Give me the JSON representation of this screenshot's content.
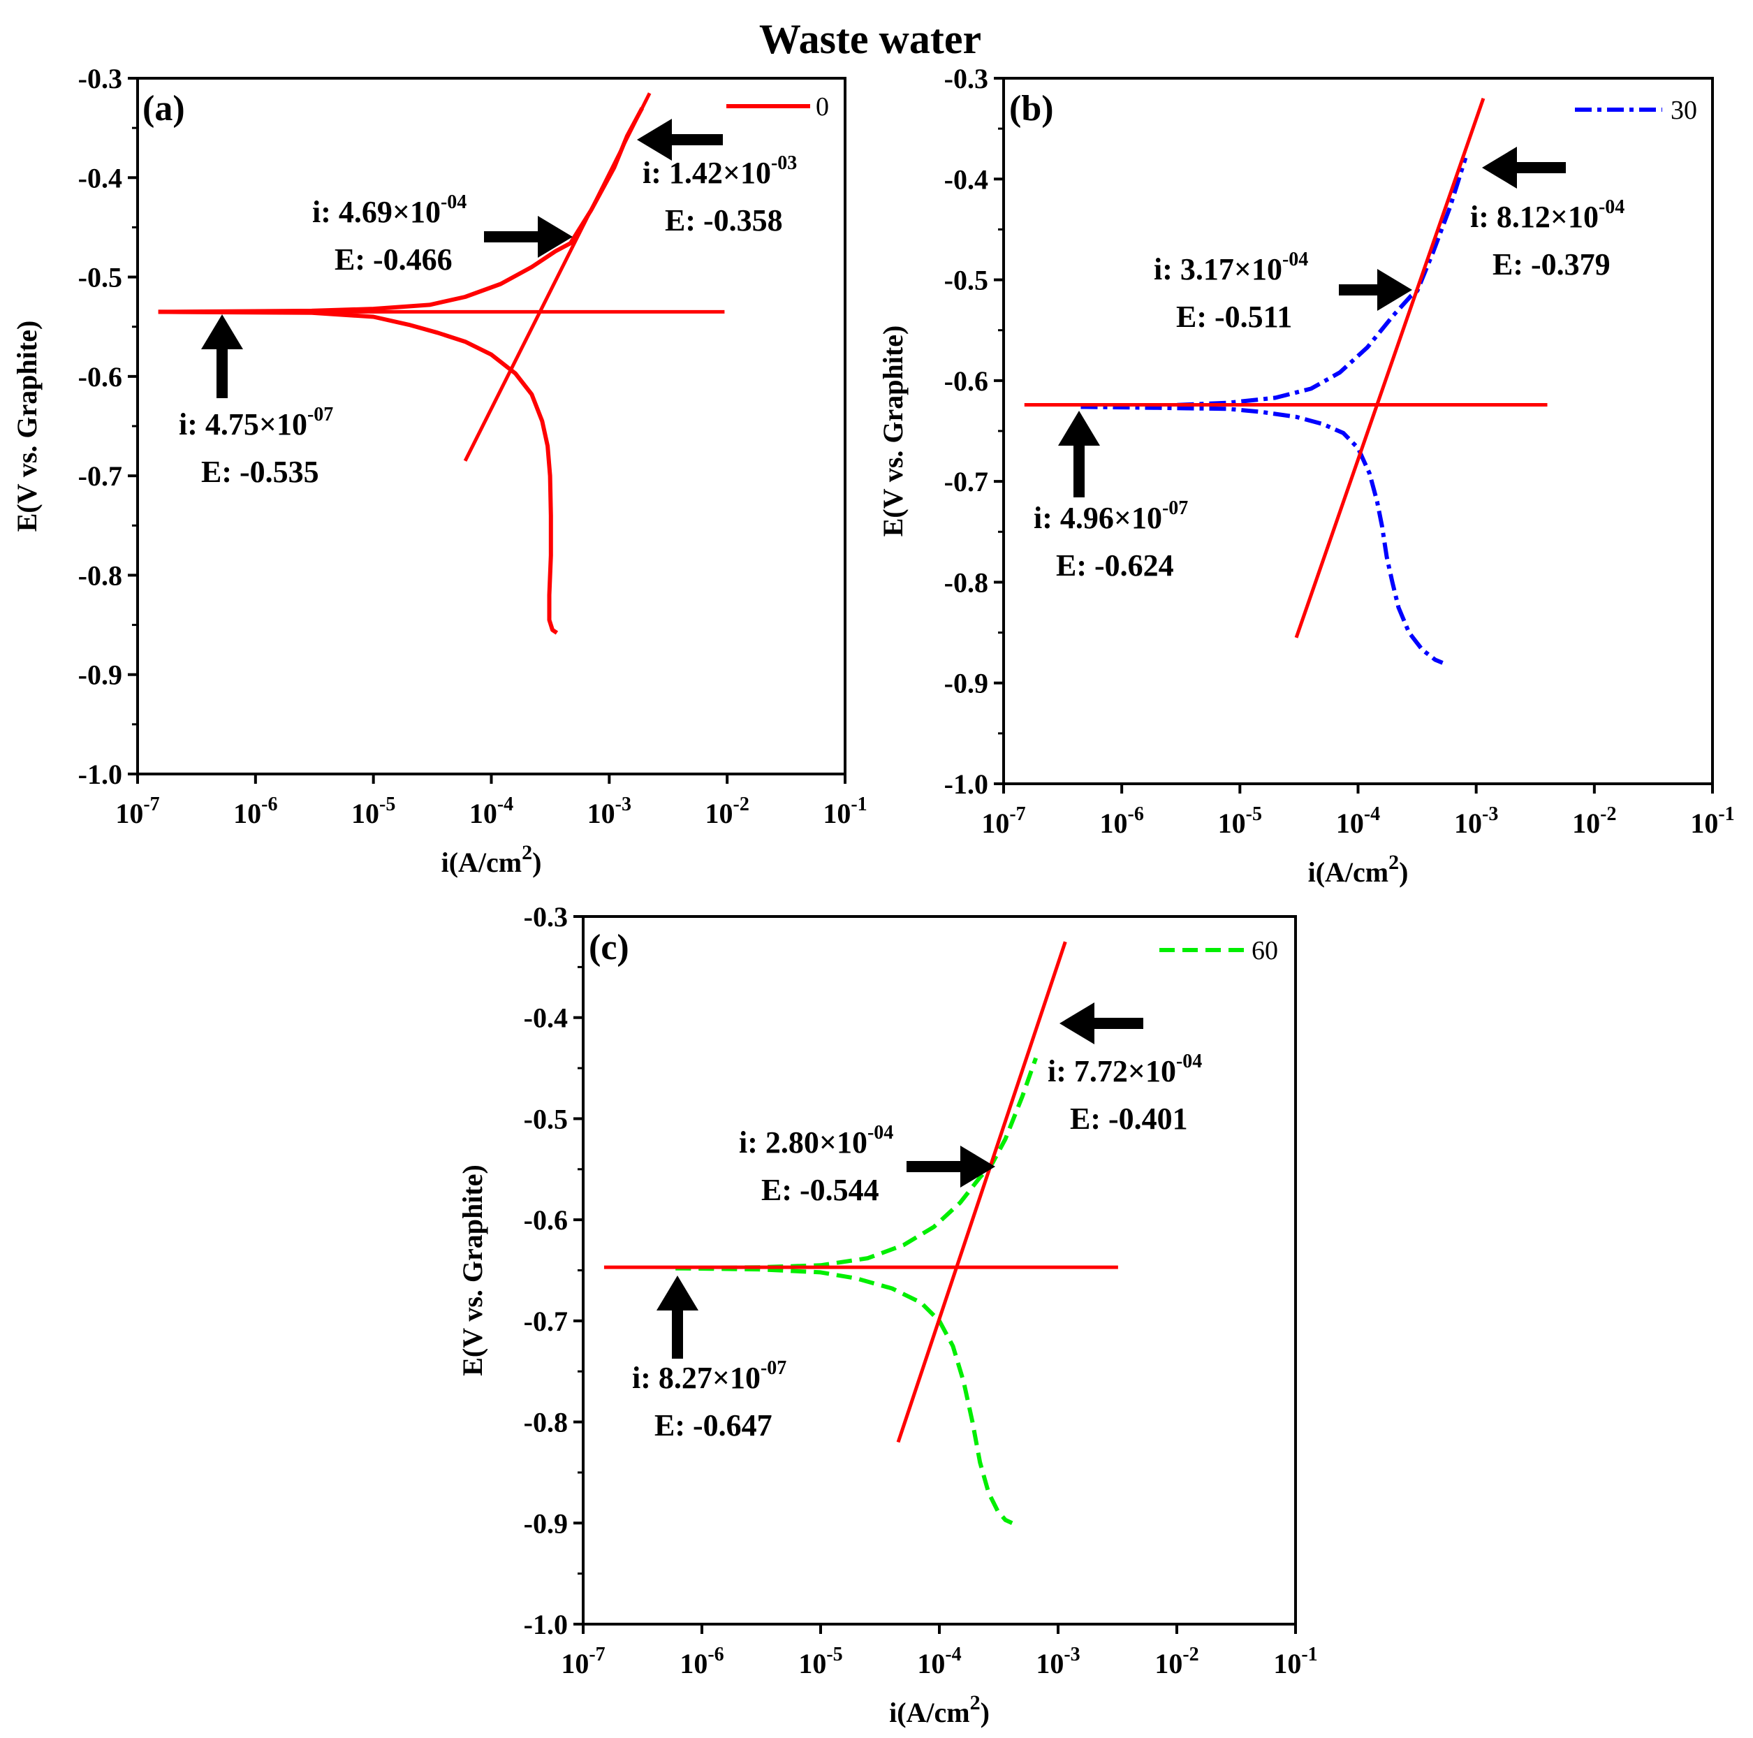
{
  "title": "Waste water",
  "chart_data": [
    {
      "type": "line",
      "panel": "(a)",
      "legend": "0",
      "color": "#ff0000",
      "dash": "solid",
      "xlabel": "i(A/cm",
      "xlabel_sup": "2",
      "xlabel_close": ")",
      "ylabel": "E(V vs. Graphite)",
      "xscale": "log",
      "xlim": [
        1e-07,
        0.1
      ],
      "ylim": [
        -1.0,
        -0.3
      ],
      "x_ticks": [
        {
          "base": "10",
          "exp": "-7"
        },
        {
          "base": "10",
          "exp": "-6"
        },
        {
          "base": "10",
          "exp": "-5"
        },
        {
          "base": "10",
          "exp": "-4"
        },
        {
          "base": "10",
          "exp": "-3"
        },
        {
          "base": "10",
          "exp": "-2"
        },
        {
          "base": "10",
          "exp": "-1"
        }
      ],
      "y_ticks": [
        "-1.0",
        "-0.9",
        "-0.8",
        "-0.7",
        "-0.6",
        "-0.5",
        "-0.4",
        "-0.3"
      ],
      "anodic": {
        "x": [
          1.5e-07,
          3e-06,
          1e-05,
          3e-05,
          6e-05,
          0.00012,
          0.00022,
          0.00035,
          0.000469,
          0.0007,
          0.0011,
          0.00142,
          0.0019
        ],
        "y": [
          -0.535,
          -0.534,
          -0.532,
          -0.528,
          -0.52,
          -0.507,
          -0.49,
          -0.474,
          -0.466,
          -0.433,
          -0.39,
          -0.358,
          -0.33
        ]
      },
      "cathodic": {
        "x": [
          1.5e-07,
          3e-06,
          1e-05,
          2e-05,
          3.5e-05,
          6e-05,
          0.0001,
          0.00016,
          0.00022,
          0.00027,
          0.0003,
          0.000315,
          0.00032,
          0.00032,
          0.00031,
          0.00031,
          0.00033,
          0.00036
        ],
        "y": [
          -0.535,
          -0.536,
          -0.54,
          -0.548,
          -0.556,
          -0.565,
          -0.578,
          -0.597,
          -0.618,
          -0.645,
          -0.67,
          -0.7,
          -0.74,
          -0.78,
          -0.82,
          -0.845,
          -0.855,
          -0.858
        ]
      },
      "tafel_lines": [
        {
          "x": [
            1.6e-07,
            0.0095
          ],
          "y": [
            -0.535,
            -0.535
          ]
        },
        {
          "x": [
            6e-05,
            0.0022
          ],
          "y": [
            -0.685,
            -0.315
          ]
        }
      ],
      "annotations": [
        {
          "line1": "i: 1.42×10",
          "exp": "-03",
          "line2": "E: -0.358",
          "arrow": "left"
        },
        {
          "line1": "i: 4.69×10",
          "exp": "-04",
          "line2": "E: -0.466",
          "arrow": "right"
        },
        {
          "line1": "i: 4.75×10",
          "exp": "-07",
          "line2": "E: -0.535",
          "arrow": "up"
        }
      ]
    },
    {
      "type": "line",
      "panel": "(b)",
      "legend": "30",
      "color": "#0000ff",
      "dash": "dashdot",
      "xlabel": "i(A/cm",
      "xlabel_sup": "2",
      "xlabel_close": ")",
      "ylabel": "E(V vs. Graphite)",
      "xscale": "log",
      "xlim": [
        1e-07,
        0.1
      ],
      "ylim": [
        -1.0,
        -0.3
      ],
      "x_ticks": [
        {
          "base": "10",
          "exp": "-7"
        },
        {
          "base": "10",
          "exp": "-6"
        },
        {
          "base": "10",
          "exp": "-5"
        },
        {
          "base": "10",
          "exp": "-4"
        },
        {
          "base": "10",
          "exp": "-3"
        },
        {
          "base": "10",
          "exp": "-2"
        },
        {
          "base": "10",
          "exp": "-1"
        }
      ],
      "y_ticks": [
        "-1.0",
        "-0.9",
        "-0.8",
        "-0.7",
        "-0.6",
        "-0.5",
        "-0.4",
        "-0.3"
      ],
      "anodic": {
        "x": [
          4.5e-07,
          2e-06,
          8e-06,
          2e-05,
          4e-05,
          7e-05,
          0.00012,
          0.0002,
          0.00028,
          0.000317,
          0.00043,
          0.0006,
          0.000812
        ],
        "y": [
          -0.626,
          -0.625,
          -0.622,
          -0.617,
          -0.608,
          -0.592,
          -0.567,
          -0.535,
          -0.516,
          -0.511,
          -0.473,
          -0.428,
          -0.379
        ]
      },
      "cathodic": {
        "x": [
          4.5e-07,
          2e-06,
          8e-06,
          1.5e-05,
          3e-05,
          5e-05,
          7.5e-05,
          0.0001,
          0.000125,
          0.000145,
          0.00016,
          0.000175,
          0.000195,
          0.00022,
          0.00027,
          0.00035,
          0.00045,
          0.00052
        ],
        "y": [
          -0.626,
          -0.627,
          -0.628,
          -0.631,
          -0.636,
          -0.643,
          -0.652,
          -0.667,
          -0.692,
          -0.72,
          -0.745,
          -0.775,
          -0.8,
          -0.825,
          -0.85,
          -0.867,
          -0.877,
          -0.88
        ]
      },
      "tafel_lines": [
        {
          "x": [
            1.5e-07,
            0.004
          ],
          "y": [
            -0.624,
            -0.624
          ]
        },
        {
          "x": [
            3e-05,
            0.00115
          ],
          "y": [
            -0.855,
            -0.32
          ]
        }
      ],
      "annotations": [
        {
          "line1": "i: 8.12×10",
          "exp": "-04",
          "line2": "E: -0.379",
          "arrow": "left"
        },
        {
          "line1": "i: 3.17×10",
          "exp": "-04",
          "line2": "E: -0.511",
          "arrow": "right"
        },
        {
          "line1": "i: 4.96×10",
          "exp": "-07",
          "line2": "E: -0.624",
          "arrow": "up"
        }
      ]
    },
    {
      "type": "line",
      "panel": "(c)",
      "legend": "60",
      "color": "#00ee00",
      "dash": "dashed",
      "xlabel": "i(A/cm",
      "xlabel_sup": "2",
      "xlabel_close": ")",
      "ylabel": "E(V vs. Graphite)",
      "xscale": "log",
      "xlim": [
        1e-07,
        0.1
      ],
      "ylim": [
        -1.0,
        -0.3
      ],
      "x_ticks": [
        {
          "base": "10",
          "exp": "-7"
        },
        {
          "base": "10",
          "exp": "-6"
        },
        {
          "base": "10",
          "exp": "-5"
        },
        {
          "base": "10",
          "exp": "-4"
        },
        {
          "base": "10",
          "exp": "-3"
        },
        {
          "base": "10",
          "exp": "-2"
        },
        {
          "base": "10",
          "exp": "-1"
        }
      ],
      "y_ticks": [
        "-1.0",
        "-0.9",
        "-0.8",
        "-0.7",
        "-0.6",
        "-0.5",
        "-0.4",
        "-0.3"
      ],
      "anodic": {
        "x": [
          6e-07,
          3e-06,
          1e-05,
          2.5e-05,
          5e-05,
          9e-05,
          0.00015,
          0.00022,
          0.00028,
          0.00036,
          0.0005,
          0.00065
        ],
        "y": [
          -0.648,
          -0.647,
          -0.645,
          -0.638,
          -0.625,
          -0.607,
          -0.583,
          -0.558,
          -0.544,
          -0.52,
          -0.478,
          -0.44
        ]
      },
      "cathodic": {
        "x": [
          6e-07,
          3e-06,
          1e-05,
          2e-05,
          4e-05,
          7e-05,
          0.0001,
          0.00013,
          0.00016,
          0.00019,
          0.00022,
          0.00026,
          0.00031,
          0.00036,
          0.00041
        ],
        "y": [
          -0.648,
          -0.649,
          -0.652,
          -0.658,
          -0.668,
          -0.682,
          -0.7,
          -0.725,
          -0.76,
          -0.8,
          -0.84,
          -0.87,
          -0.888,
          -0.897,
          -0.9
        ]
      },
      "tafel_lines": [
        {
          "x": [
            1.5e-07,
            0.0032
          ],
          "y": [
            -0.647,
            -0.647
          ]
        },
        {
          "x": [
            4.5e-05,
            0.00115
          ],
          "y": [
            -0.82,
            -0.325
          ]
        }
      ],
      "annotations": [
        {
          "line1": "i: 7.72×10",
          "exp": "-04",
          "line2": "E: -0.401",
          "arrow": "left"
        },
        {
          "line1": "i: 2.80×10",
          "exp": "-04",
          "line2": "E: -0.544",
          "arrow": "right"
        },
        {
          "line1": "i: 8.27×10",
          "exp": "-07",
          "line2": "E: -0.647",
          "arrow": "up"
        }
      ]
    }
  ]
}
